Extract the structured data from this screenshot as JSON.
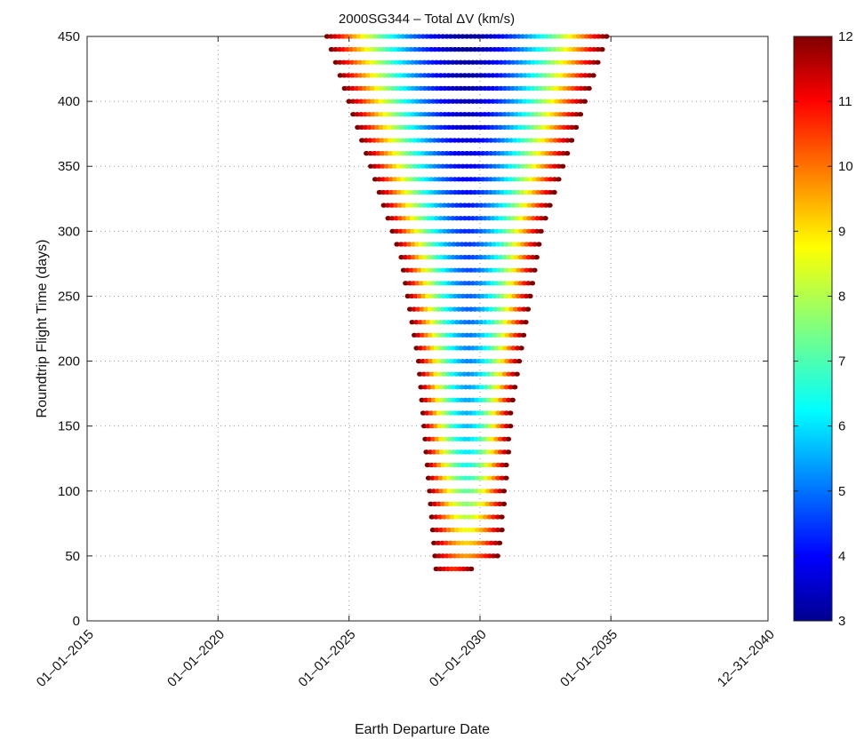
{
  "chart_data": {
    "type": "scatter",
    "title": "2000SG344 – Total ΔV (km/s)",
    "xlabel": "Earth Departure Date",
    "ylabel": "Roundtrip Flight Time (days)",
    "xlim": [
      "2015-01-01",
      "2040-12-31"
    ],
    "ylim": [
      0,
      450
    ],
    "x_tick_labels": [
      "01–01–2015",
      "01–01–2020",
      "01–01–2025",
      "01–01–2030",
      "01–01–2035",
      "12–31–2040"
    ],
    "y_ticks": [
      0,
      50,
      100,
      150,
      200,
      250,
      300,
      350,
      400,
      450
    ],
    "grid": true,
    "colorbar": {
      "label": "Total ΔV (km/s)",
      "min": 3,
      "max": 12,
      "ticks": [
        3,
        4,
        5,
        6,
        7,
        8,
        9,
        10,
        11,
        12
      ],
      "colormap": "jet",
      "placement": "right"
    },
    "series": [
      {
        "flight_time_days": [
          450,
          440,
          430,
          420,
          410,
          400,
          390,
          380,
          370,
          360,
          350,
          340,
          330,
          320,
          310,
          300,
          290,
          280,
          270,
          260,
          250,
          240,
          230,
          220,
          210,
          200,
          190,
          180,
          170,
          160,
          150,
          140,
          130,
          120,
          110,
          100,
          90,
          80,
          70,
          60,
          50,
          40
        ],
        "departure_start": [
          "2024-03-01",
          "2024-05-01",
          "2024-07-01",
          "2024-09-01",
          "2024-11-01",
          "2025-01-01",
          "2025-03-01",
          "2025-05-01",
          "2025-07-01",
          "2025-09-01",
          "2025-11-01",
          "2026-01-01",
          "2026-03-01",
          "2026-05-01",
          "2026-07-01",
          "2026-09-01",
          "2026-11-01",
          "2027-01-01",
          "2027-02-01",
          "2027-03-01",
          "2027-04-01",
          "2027-05-01",
          "2027-06-01",
          "2027-07-01",
          "2027-08-01",
          "2027-09-01",
          "2027-09-15",
          "2027-10-01",
          "2027-10-15",
          "2027-11-01",
          "2027-11-15",
          "2027-12-01",
          "2027-12-15",
          "2028-01-01",
          "2028-01-15",
          "2028-02-01",
          "2028-02-15",
          "2028-03-01",
          "2028-03-15",
          "2028-04-01",
          "2028-04-15",
          "2028-05-01"
        ],
        "departure_end": [
          "2034-11-01",
          "2034-09-01",
          "2034-07-01",
          "2034-05-01",
          "2034-03-01",
          "2034-01-01",
          "2033-11-01",
          "2033-09-01",
          "2033-07-01",
          "2033-05-01",
          "2033-03-01",
          "2033-01-01",
          "2032-11-01",
          "2032-09-01",
          "2032-07-01",
          "2032-05-01",
          "2032-04-01",
          "2032-03-01",
          "2032-02-01",
          "2032-01-01",
          "2031-12-01",
          "2031-11-01",
          "2031-10-01",
          "2031-09-01",
          "2031-08-01",
          "2031-07-01",
          "2031-06-01",
          "2031-05-01",
          "2031-04-01",
          "2031-03-01",
          "2031-03-01",
          "2031-02-01",
          "2031-02-01",
          "2031-01-01",
          "2031-01-01",
          "2030-12-01",
          "2030-12-01",
          "2030-11-01",
          "2030-11-01",
          "2030-10-01",
          "2030-09-01",
          "2029-09-01"
        ],
        "center_delta_v_km_s": [
          3.2,
          3.2,
          3.3,
          3.3,
          3.4,
          3.5,
          3.6,
          3.7,
          3.8,
          3.9,
          4.0,
          4.1,
          4.2,
          4.3,
          4.4,
          4.5,
          4.6,
          4.7,
          4.8,
          4.9,
          5.0,
          5.0,
          5.1,
          5.2,
          5.3,
          5.3,
          5.4,
          5.5,
          5.6,
          5.7,
          5.8,
          6.0,
          6.2,
          6.5,
          6.8,
          7.2,
          7.6,
          8.0,
          8.5,
          9.0,
          9.5,
          10.5
        ],
        "edge_delta_v_km_s": 12
      }
    ]
  }
}
